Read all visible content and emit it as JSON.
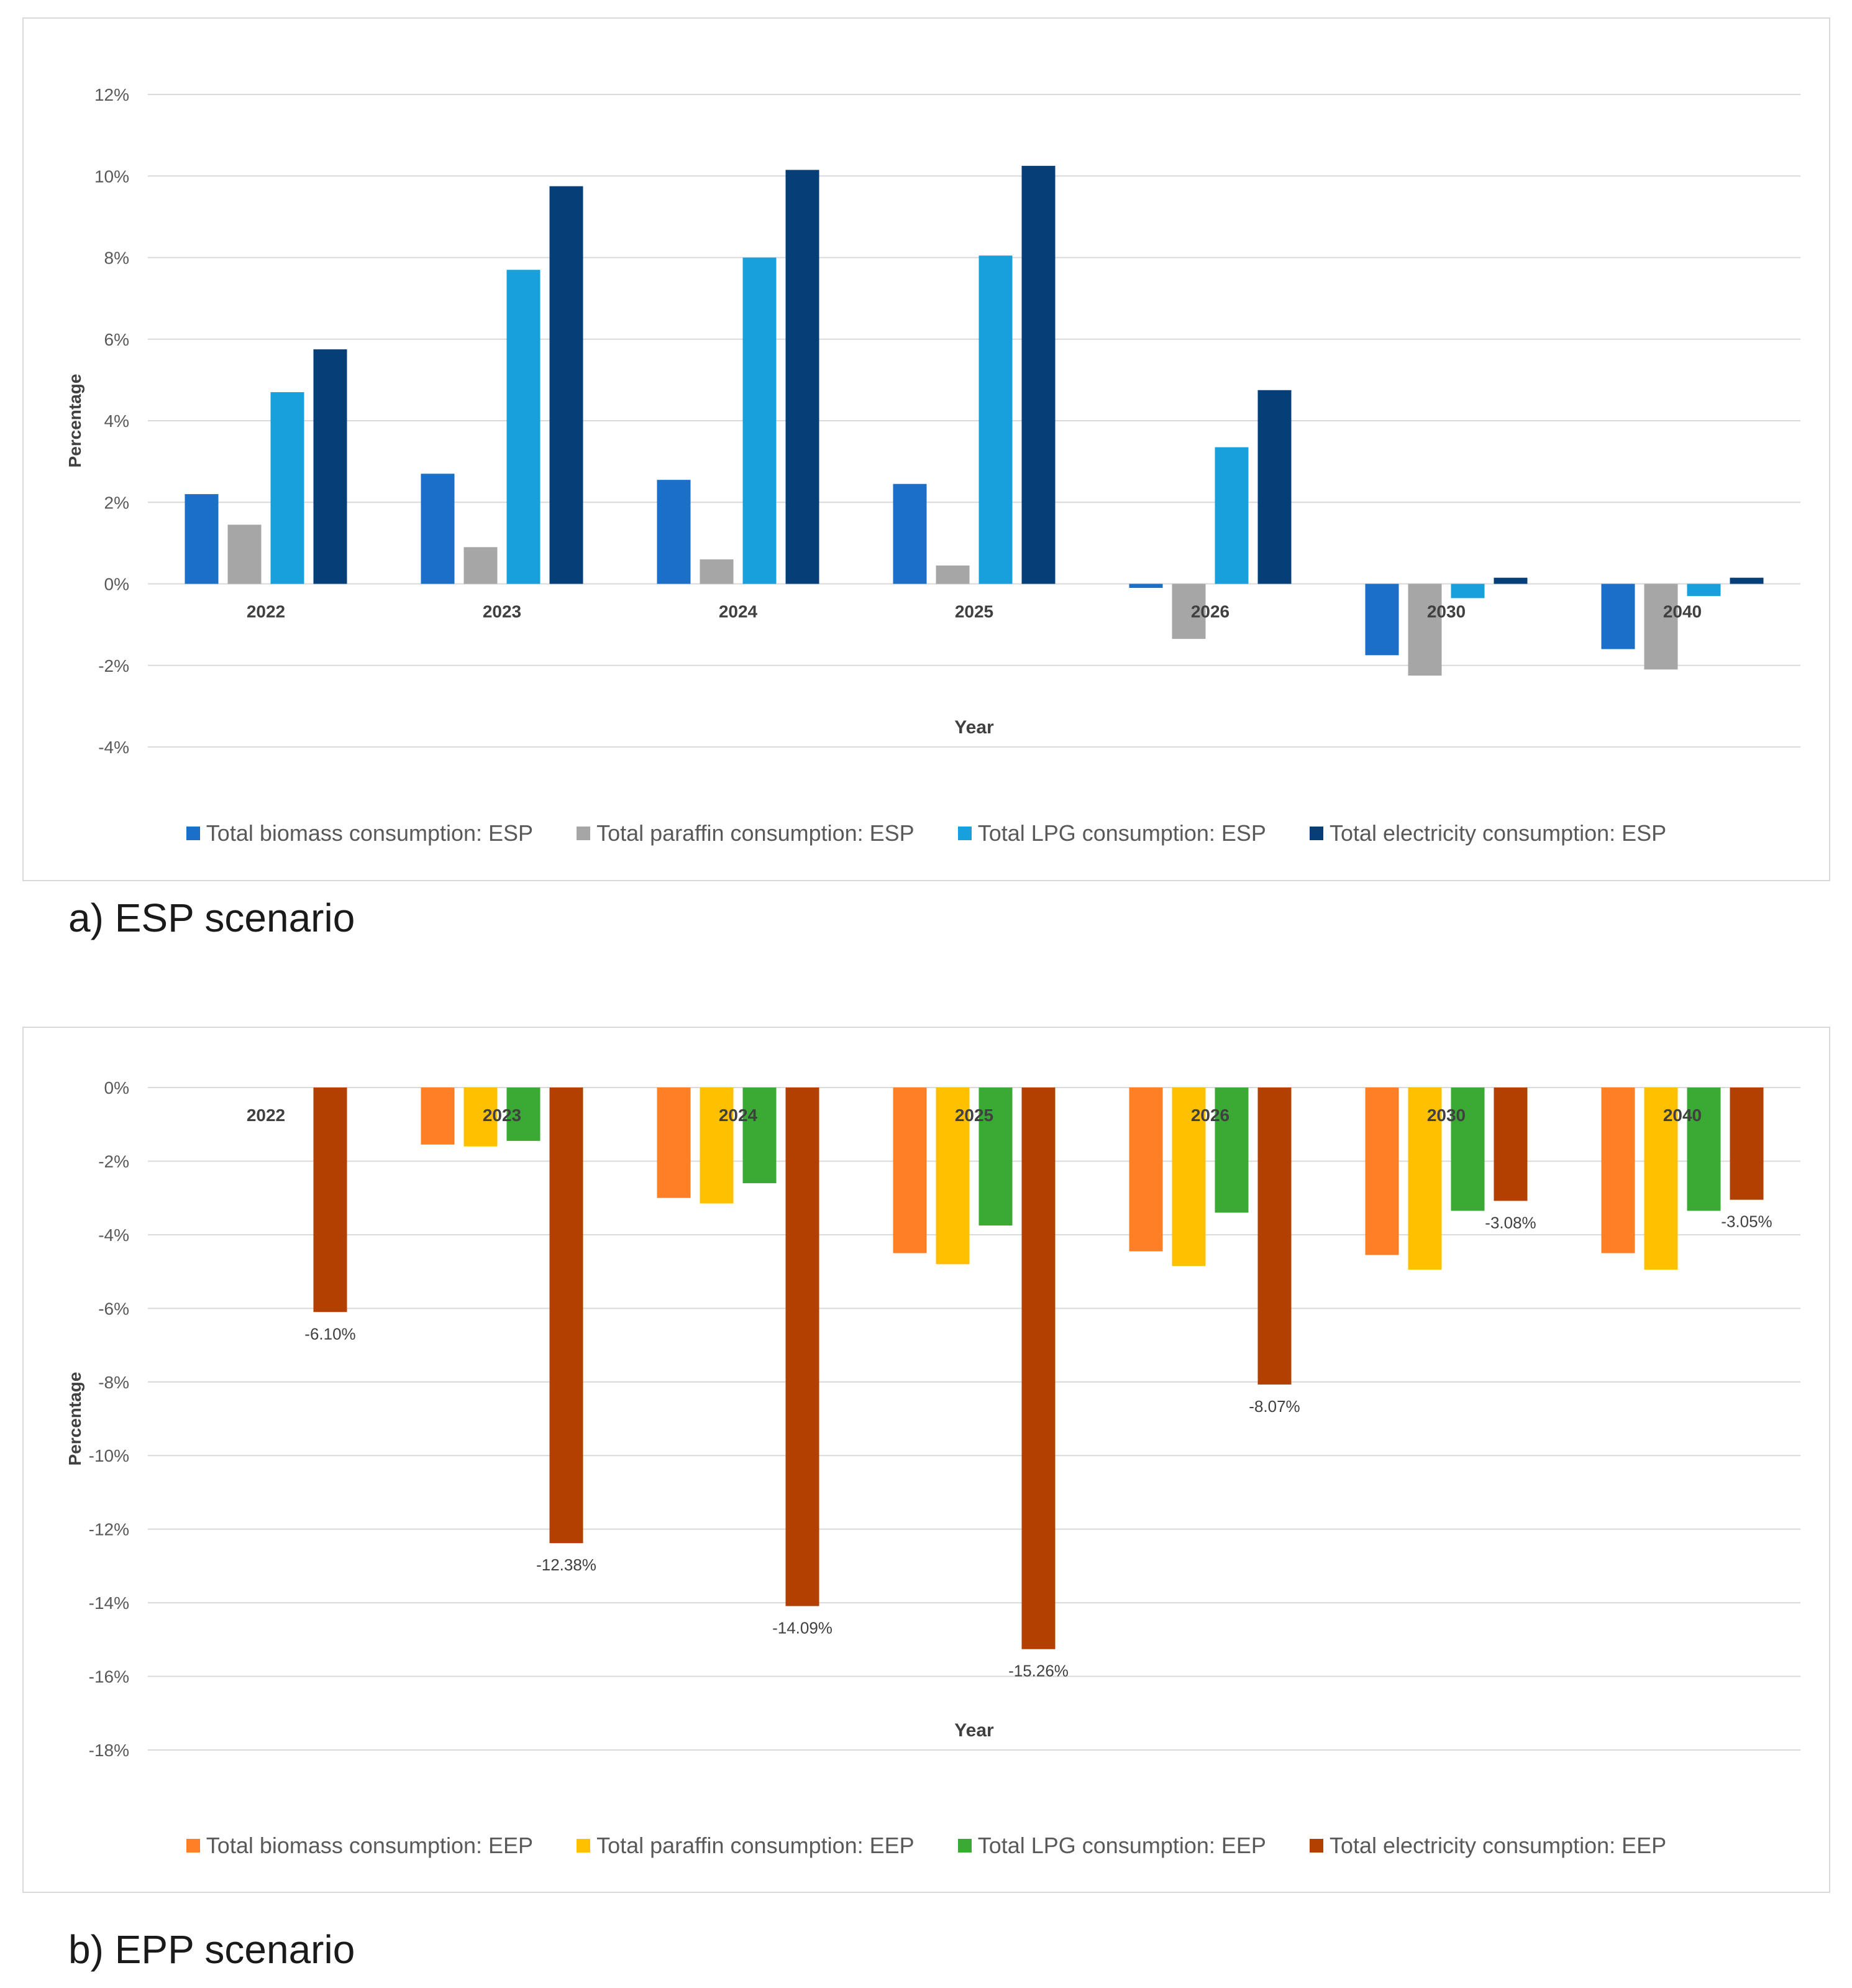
{
  "chart_data": [
    {
      "type": "bar",
      "id": "esp",
      "caption": "a) ESP scenario",
      "xlabel": "Year",
      "ylabel": "Percentage",
      "ylim": [
        -4,
        12
      ],
      "yticks": [
        12,
        10,
        8,
        6,
        4,
        2,
        0,
        -2,
        -4
      ],
      "ytick_labels": [
        "12%",
        "10%",
        "8%",
        "6%",
        "4%",
        "2%",
        "0%",
        "-2%",
        "-4%"
      ],
      "categories": [
        "2022",
        "2023",
        "2024",
        "2025",
        "2026",
        "2030",
        "2040"
      ],
      "series": [
        {
          "name": "Total biomass consumption: ESP",
          "color": "#1a6fc9",
          "values": [
            2.2,
            2.7,
            2.55,
            2.45,
            -0.1,
            -1.75,
            -1.6
          ]
        },
        {
          "name": "Total paraffin consumption: ESP",
          "color": "#a6a6a6",
          "values": [
            1.45,
            0.9,
            0.6,
            0.45,
            -1.35,
            -2.25,
            -2.1
          ]
        },
        {
          "name": "Total LPG consumption: ESP",
          "color": "#17a0db",
          "values": [
            4.7,
            7.7,
            8.0,
            8.05,
            3.35,
            -0.35,
            -0.3
          ]
        },
        {
          "name": "Total electricity consumption: ESP",
          "color": "#063f78",
          "values": [
            5.75,
            9.75,
            10.15,
            10.25,
            4.75,
            0.15,
            0.15
          ]
        }
      ]
    },
    {
      "type": "bar",
      "id": "eep",
      "caption": "b) EPP scenario",
      "xlabel": "Year",
      "ylabel": "Percentage",
      "ylim": [
        -18,
        0
      ],
      "yticks": [
        0,
        -2,
        -4,
        -6,
        -8,
        -10,
        -12,
        -14,
        -16,
        -18
      ],
      "ytick_labels": [
        "0%",
        "-2%",
        "-4%",
        "-6%",
        "-8%",
        "-10%",
        "-12%",
        "-14%",
        "-16%",
        "-18%"
      ],
      "categories": [
        "2022",
        "2023",
        "2024",
        "2025",
        "2026",
        "2030",
        "2040"
      ],
      "series": [
        {
          "name": "Total biomass consumption: EEP",
          "color": "#ff7f27",
          "values": [
            0,
            -1.55,
            -3.0,
            -4.5,
            -4.45,
            -4.55,
            -4.5
          ]
        },
        {
          "name": "Total paraffin consumption: EEP",
          "color": "#ffc000",
          "values": [
            0,
            -1.6,
            -3.15,
            -4.8,
            -4.85,
            -4.95,
            -4.95
          ]
        },
        {
          "name": "Total LPG consumption: EEP",
          "color": "#3aaa35",
          "values": [
            0,
            -1.45,
            -2.6,
            -3.75,
            -3.4,
            -3.35,
            -3.35
          ]
        },
        {
          "name": "Total electricity consumption: EEP",
          "color": "#b34000",
          "values": [
            -6.1,
            -12.38,
            -14.09,
            -15.26,
            -8.07,
            -3.08,
            -3.05
          ]
        }
      ],
      "data_labels": {
        "series_index": 3,
        "labels": [
          "-6.10%",
          "-12.38%",
          "-14.09%",
          "-15.26%",
          "-8.07%",
          "-3.08%",
          "-3.05%"
        ]
      }
    }
  ]
}
